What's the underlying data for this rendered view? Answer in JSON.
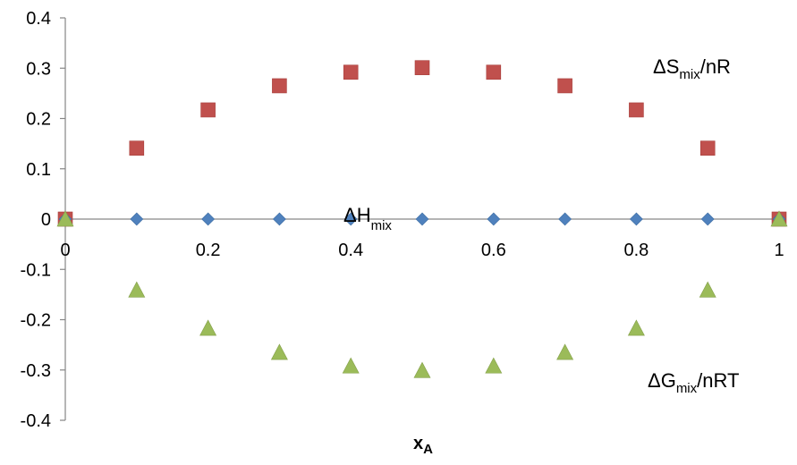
{
  "chart_data": {
    "type": "scatter",
    "xlabel_main": "x",
    "xlabel_sub": "A",
    "xlim": [
      0,
      1
    ],
    "ylim": [
      -0.4,
      0.4
    ],
    "x_ticks": [
      "0",
      "0.2",
      "0.4",
      "0.6",
      "0.8",
      "1"
    ],
    "y_ticks": [
      "0.4",
      "0.3",
      "0.2",
      "0.1",
      "0",
      "-0.1",
      "-0.2",
      "-0.3",
      "-0.4"
    ],
    "x": [
      0,
      0.1,
      0.2,
      0.3,
      0.4,
      0.5,
      0.6,
      0.7,
      0.8,
      0.9,
      1
    ],
    "series": [
      {
        "key": "dS",
        "marker": "square",
        "color": "#C0504D",
        "label": {
          "prefix": "ΔS",
          "sub": "mix",
          "suffix": "/nR"
        },
        "values": [
          0,
          0.141,
          0.217,
          0.265,
          0.292,
          0.301,
          0.292,
          0.265,
          0.217,
          0.141,
          0
        ]
      },
      {
        "key": "dH",
        "marker": "diamond",
        "color": "#4F81BD",
        "label": {
          "prefix": "ΔH",
          "sub": "mix",
          "suffix": ""
        },
        "values": [
          0,
          0,
          0,
          0,
          0,
          0,
          0,
          0,
          0,
          0,
          0
        ]
      },
      {
        "key": "dG",
        "marker": "triangle",
        "color": "#9BBB59",
        "label": {
          "prefix": "ΔG",
          "sub": "mix",
          "suffix": "/nRT"
        },
        "values": [
          0,
          -0.141,
          -0.217,
          -0.265,
          -0.292,
          -0.301,
          -0.292,
          -0.265,
          -0.217,
          -0.141,
          0
        ]
      }
    ]
  }
}
